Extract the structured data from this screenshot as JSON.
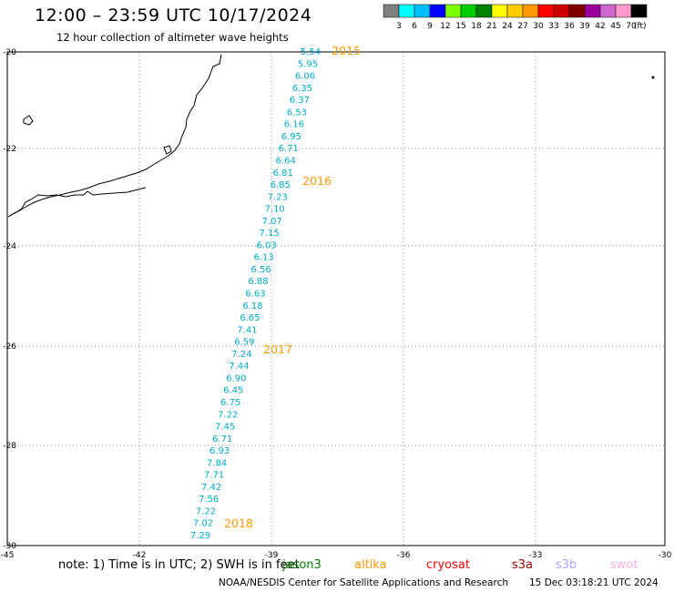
{
  "header": {
    "title": "12:00 – 23:59 UTC 10/17/2024",
    "subtitle": "12 hour collection of altimeter wave heights"
  },
  "colorbar": {
    "colors": [
      "#7f7f7f",
      "#00ffff",
      "#00bfff",
      "#0000ff",
      "#7fff00",
      "#00cc00",
      "#008000",
      "#ffff00",
      "#ffcc00",
      "#ff9900",
      "#ff0000",
      "#cc0000",
      "#800000",
      "#990099",
      "#cc66cc",
      "#ff99cc",
      "#000000"
    ],
    "labels": [
      "3",
      "6",
      "9",
      "12",
      "15",
      "18",
      "21",
      "24",
      "27",
      "30",
      "33",
      "36",
      "39",
      "42",
      "45",
      "70"
    ],
    "unit": "(ft)"
  },
  "axes": {
    "lat_labels": [
      "-20",
      "-22",
      "-24",
      "-26",
      "-28",
      "-30"
    ],
    "lon_labels": [
      "-45",
      "-42",
      "-39",
      "-36",
      "-33",
      "-30"
    ]
  },
  "track": {
    "color": "#00aacc",
    "hour_color": "#ff9900",
    "values": [
      "5.54",
      "5.95",
      "6.06",
      "6.35",
      "6.37",
      "6.53",
      "6.16",
      "6.95",
      "6.71",
      "6.64",
      "6.81",
      "6.85",
      "7.23",
      "7.10",
      "7.07",
      "7.15",
      "6.03",
      "6.13",
      "6.56",
      "6.88",
      "6.63",
      "6.18",
      "6.65",
      "7.41",
      "6.59",
      "7.24",
      "7.44",
      "6.90",
      "6.45",
      "6.75",
      "7.22",
      "7.45",
      "6.71",
      "6.93",
      "7.84",
      "7.71",
      "7.42",
      "7.56",
      "7.22",
      "7.02",
      "7.29"
    ],
    "hour_labels": [
      "2015",
      "2016",
      "2017",
      "2018"
    ]
  },
  "footer": {
    "note": "note: 1) Time is in UTC; 2) SWH is in feet",
    "satellites": [
      {
        "name": "jason3",
        "color": "#008000"
      },
      {
        "name": "altika",
        "color": "#ff9900"
      },
      {
        "name": "cryosat",
        "color": "#ff0000"
      },
      {
        "name": "s3a",
        "color": "#990000"
      },
      {
        "name": "s3b",
        "color": "#b0a0ff"
      },
      {
        "name": "swot",
        "color": "#ffaadd"
      }
    ],
    "credit": "NOAA/NESDIS Center for Satellite Applications and Research",
    "timestamp": "15 Dec 03:18:21 UTC 2024"
  }
}
